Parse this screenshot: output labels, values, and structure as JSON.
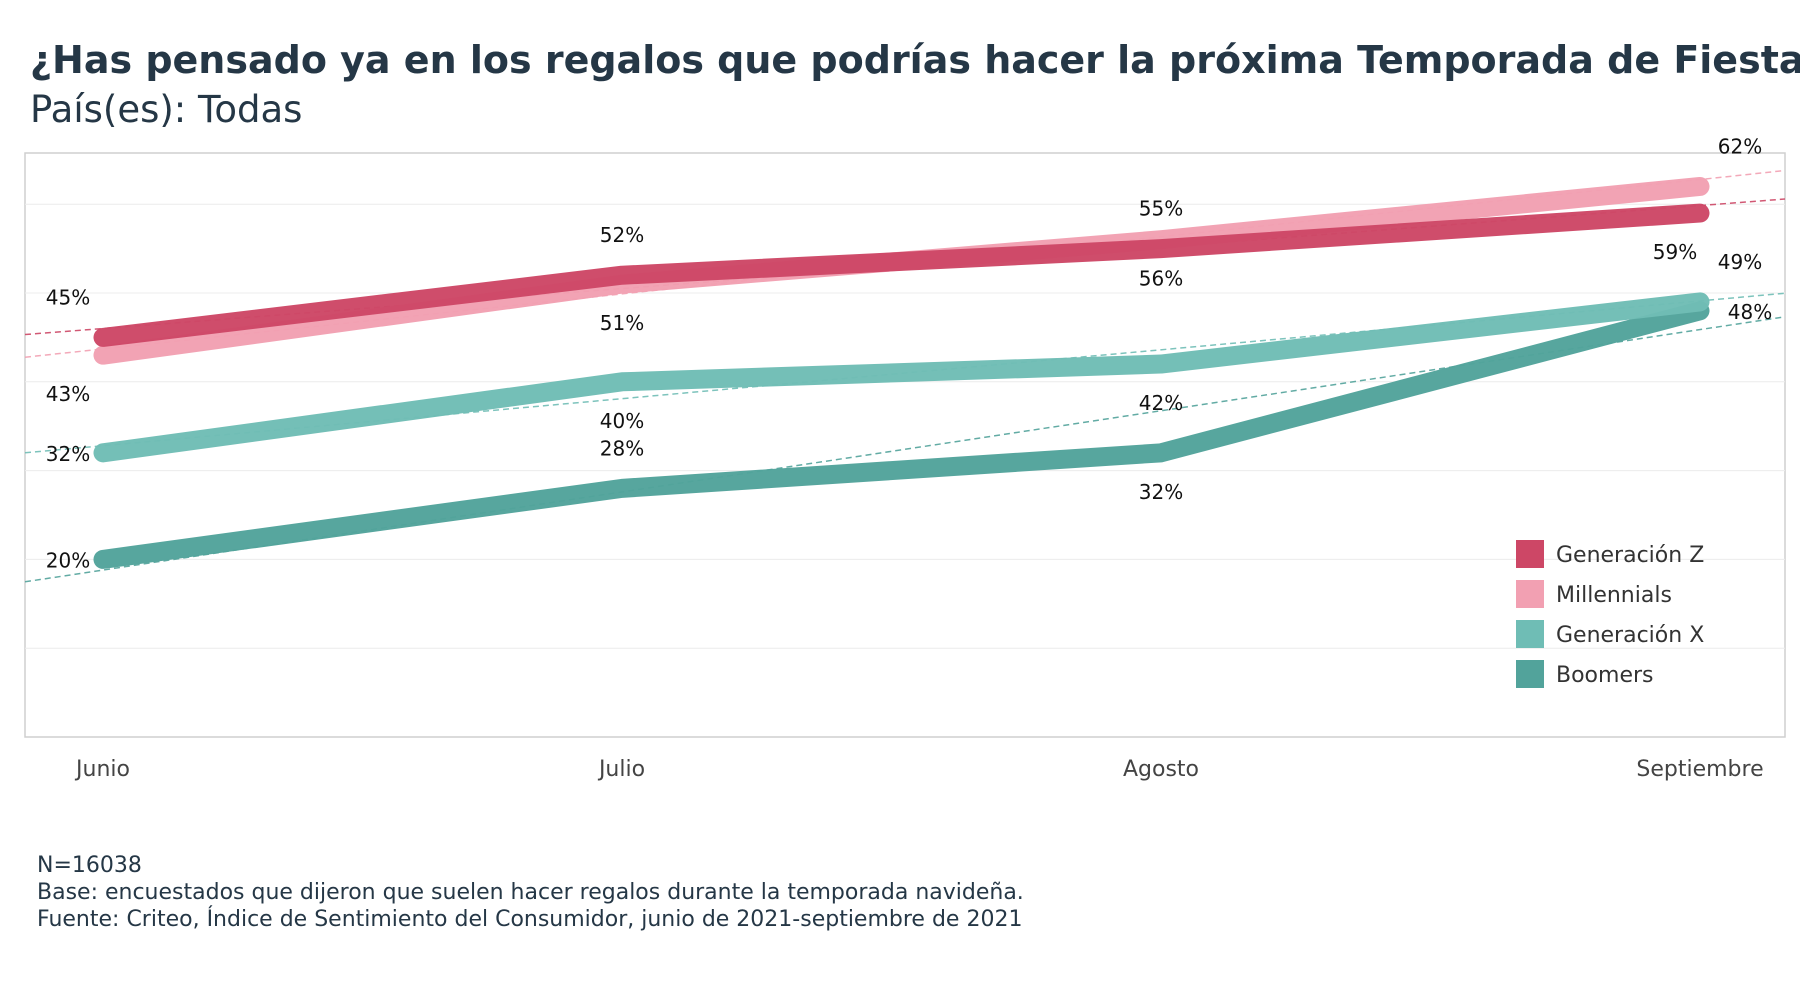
{
  "header": {
    "title": "¿Has pensado ya en los regalos que podrías hacer la próxima Temporada de Fiestas?",
    "subtitle": "País(es): Todas"
  },
  "footer": {
    "n": "N=16038",
    "base": "Base: encuestados que dijeron que suelen hacer regalos durante la temporada navideña.",
    "source": "Fuente: Criteo, Índice de Sentimiento del Consumidor, junio de 2021-septiembre de 2021"
  },
  "chart_data": {
    "type": "line",
    "categories": [
      "Junio",
      "Julio",
      "Agosto",
      "Septiembre"
    ],
    "ylim": [
      0,
      65
    ],
    "grid": true,
    "trendlines": true,
    "legend_position": "bottom-right",
    "series": [
      {
        "name": "Generación Z",
        "color": "#cd4766",
        "values": [
          45,
          52,
          55,
          59
        ],
        "labels": [
          "45%",
          "52%",
          "55%",
          "59%"
        ],
        "label_pos": [
          "above",
          "above",
          "above",
          "below"
        ]
      },
      {
        "name": "Millennials",
        "color": "#f2a0b2",
        "values": [
          43,
          51,
          56,
          62
        ],
        "labels": [
          "43%",
          "51%",
          "56%",
          "62%"
        ],
        "label_pos": [
          "below",
          "below",
          "below",
          "above"
        ]
      },
      {
        "name": "Generación X",
        "color": "#6fbdb5",
        "values": [
          32,
          40,
          42,
          49
        ],
        "labels": [
          "32%",
          "40%",
          "42%",
          "49%"
        ],
        "label_pos": [
          "left",
          "below",
          "below",
          "above"
        ]
      },
      {
        "name": "Boomers",
        "color": "#52a39b",
        "values": [
          20,
          28,
          32,
          48
        ],
        "labels": [
          "20%",
          "28%",
          "32%",
          "48%"
        ],
        "label_pos": [
          "left",
          "above",
          "below",
          "right"
        ]
      }
    ]
  }
}
